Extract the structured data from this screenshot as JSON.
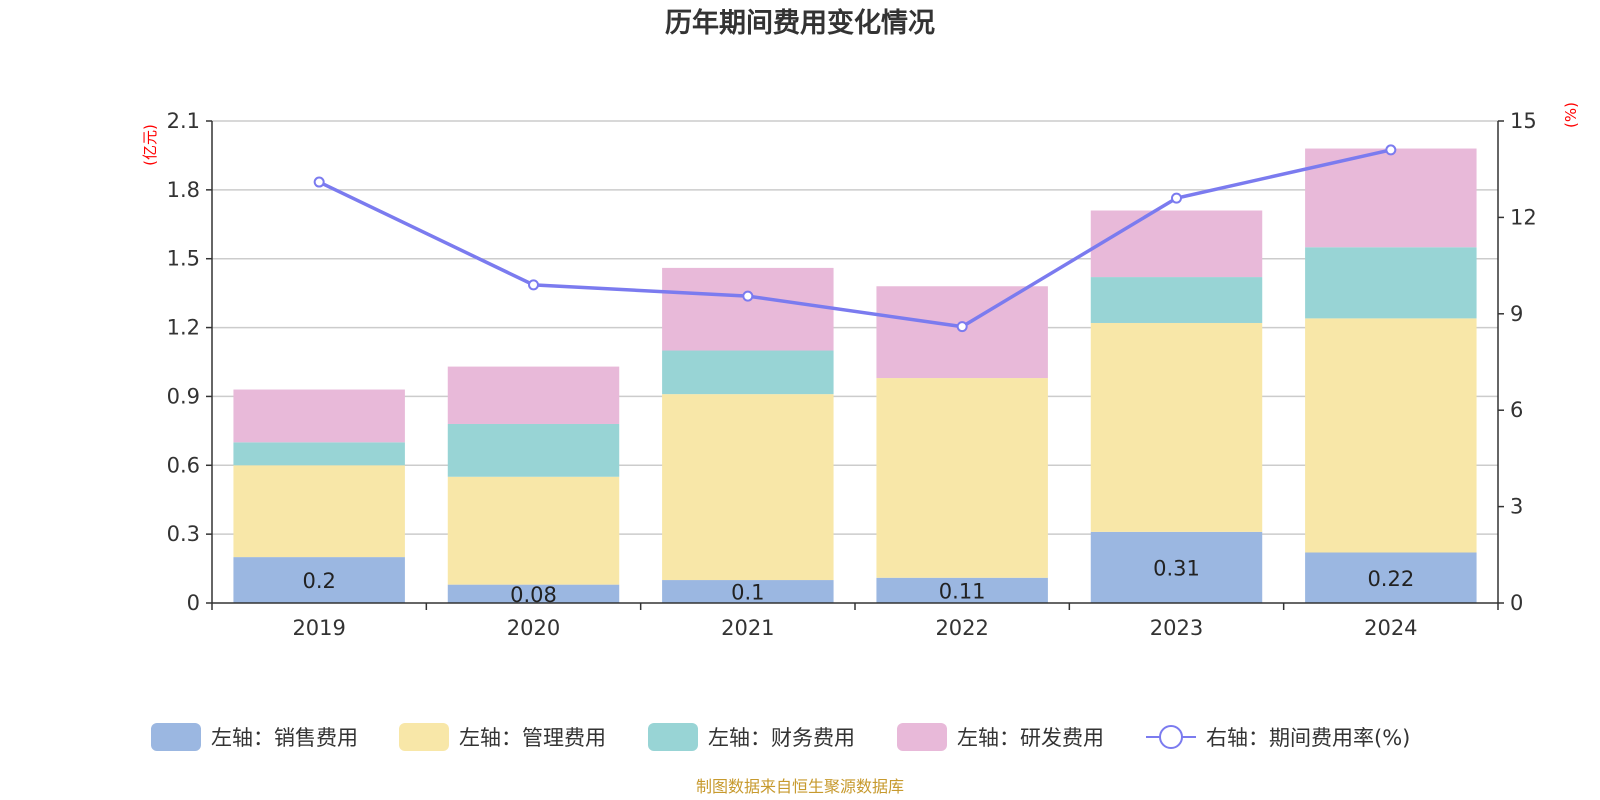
{
  "chart_data": {
    "type": "bar",
    "title": "历年期间费用变化情况",
    "categories": [
      "2019",
      "2020",
      "2021",
      "2022",
      "2023",
      "2024"
    ],
    "y_left": {
      "unit": "(亿元)",
      "ylim": [
        0,
        2.1
      ],
      "ticks": [
        "0",
        "0.3",
        "0.6",
        "0.9",
        "1.2",
        "1.5",
        "1.8",
        "2.1"
      ]
    },
    "y_right": {
      "unit": "(%)",
      "ylim": [
        0,
        15
      ],
      "ticks": [
        "0",
        "3",
        "6",
        "9",
        "12",
        "15"
      ]
    },
    "series": [
      {
        "name": "左轴：销售费用",
        "kind": "bar",
        "axis": "left",
        "color": "#9bb7e1",
        "values": [
          0.2,
          0.08,
          0.1,
          0.11,
          0.31,
          0.22
        ],
        "labels": [
          "0.2",
          "0.08",
          "0.1",
          "0.11",
          "0.31",
          "0.22"
        ]
      },
      {
        "name": "左轴：管理费用",
        "kind": "bar",
        "axis": "left",
        "color": "#f8e7a8",
        "values": [
          0.4,
          0.47,
          0.81,
          0.87,
          0.91,
          1.02
        ]
      },
      {
        "name": "左轴：财务费用",
        "kind": "bar",
        "axis": "left",
        "color": "#98d4d5",
        "values": [
          0.1,
          0.23,
          0.19,
          0.0,
          0.2,
          0.31
        ]
      },
      {
        "name": "左轴：研发费用",
        "kind": "bar",
        "axis": "left",
        "color": "#e8b9d9",
        "values": [
          0.23,
          0.25,
          0.36,
          0.4,
          0.29,
          0.43
        ]
      },
      {
        "name": "右轴：期间费用率(%)",
        "kind": "line",
        "axis": "right",
        "color": "#7b7bef",
        "values": [
          13.1,
          9.9,
          9.55,
          8.6,
          12.6,
          14.1
        ]
      }
    ],
    "legend_position": "bottom",
    "grid": true
  },
  "source_note": "制图数据来自恒生聚源数据库"
}
